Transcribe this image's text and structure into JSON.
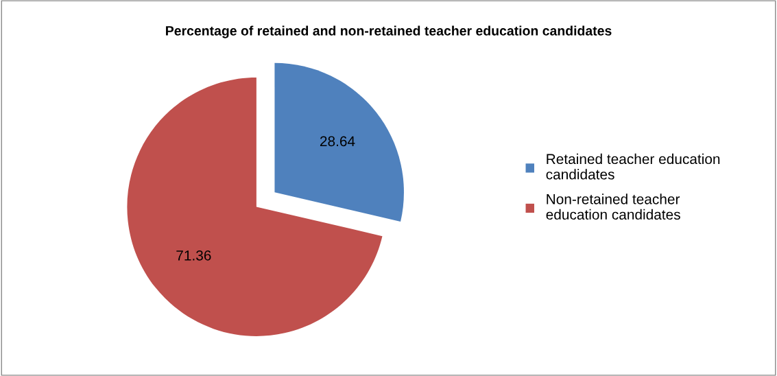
{
  "chart_data": {
    "type": "pie",
    "title": "Percentage of retained and non-retained teacher education candidates",
    "categories": [
      "Retained teacher education candidates",
      "Non-retained teacher education candidates"
    ],
    "values": [
      28.64,
      71.36
    ],
    "colors": [
      "#4f81bd",
      "#c0504d"
    ],
    "data_labels": true,
    "legend": "right"
  }
}
